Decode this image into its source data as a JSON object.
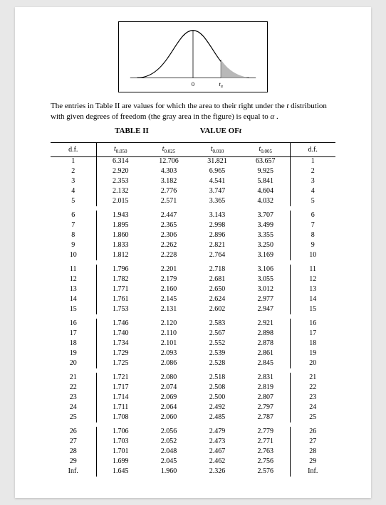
{
  "caption_pre": "The entries in Table II are values for which the area to their right under the ",
  "caption_ital": "t",
  "caption_post": " distribution with given degrees of freedom (the gray area in the figure) is equal to ",
  "caption_alpha": "α",
  "caption_end": " .",
  "title_table": "TABLE II",
  "title_value_pre": "VALUE OF",
  "title_value_ital": "t",
  "headers": {
    "df": "d.f.",
    "c1_pre": "t",
    "c1_sub": "0.050",
    "c2_pre": "t",
    "c2_sub": "0.025",
    "c3_pre": "t",
    "c3_sub": "0.010",
    "c4_pre": "t",
    "c4_sub": "0.005",
    "df2": "d.f."
  },
  "groups": [
    [
      {
        "df": "1",
        "v": [
          "6.314",
          "12.706",
          "31.821",
          "63.657"
        ]
      },
      {
        "df": "2",
        "v": [
          "2.920",
          "4.303",
          "6.965",
          "9.925"
        ]
      },
      {
        "df": "3",
        "v": [
          "2.353",
          "3.182",
          "4.541",
          "5.841"
        ]
      },
      {
        "df": "4",
        "v": [
          "2.132",
          "2.776",
          "3.747",
          "4.604"
        ]
      },
      {
        "df": "5",
        "v": [
          "2.015",
          "2.571",
          "3.365",
          "4.032"
        ]
      }
    ],
    [
      {
        "df": "6",
        "v": [
          "1.943",
          "2.447",
          "3.143",
          "3.707"
        ]
      },
      {
        "df": "7",
        "v": [
          "1.895",
          "2.365",
          "2.998",
          "3.499"
        ]
      },
      {
        "df": "8",
        "v": [
          "1.860",
          "2.306",
          "2.896",
          "3.355"
        ]
      },
      {
        "df": "9",
        "v": [
          "1.833",
          "2.262",
          "2.821",
          "3.250"
        ]
      },
      {
        "df": "10",
        "v": [
          "1.812",
          "2.228",
          "2.764",
          "3.169"
        ]
      }
    ],
    [
      {
        "df": "11",
        "v": [
          "1.796",
          "2.201",
          "2.718",
          "3.106"
        ]
      },
      {
        "df": "12",
        "v": [
          "1.782",
          "2.179",
          "2.681",
          "3.055"
        ]
      },
      {
        "df": "13",
        "v": [
          "1.771",
          "2.160",
          "2.650",
          "3.012"
        ]
      },
      {
        "df": "14",
        "v": [
          "1.761",
          "2.145",
          "2.624",
          "2.977"
        ]
      },
      {
        "df": "15",
        "v": [
          "1.753",
          "2.131",
          "2.602",
          "2.947"
        ]
      }
    ],
    [
      {
        "df": "16",
        "v": [
          "1.746",
          "2.120",
          "2.583",
          "2.921"
        ]
      },
      {
        "df": "17",
        "v": [
          "1.740",
          "2.110",
          "2.567",
          "2.898"
        ]
      },
      {
        "df": "18",
        "v": [
          "1.734",
          "2.101",
          "2.552",
          "2.878"
        ]
      },
      {
        "df": "19",
        "v": [
          "1.729",
          "2.093",
          "2.539",
          "2.861"
        ]
      },
      {
        "df": "20",
        "v": [
          "1.725",
          "2.086",
          "2.528",
          "2.845"
        ]
      }
    ],
    [
      {
        "df": "21",
        "v": [
          "1.721",
          "2.080",
          "2.518",
          "2.831"
        ]
      },
      {
        "df": "22",
        "v": [
          "1.717",
          "2.074",
          "2.508",
          "2.819"
        ]
      },
      {
        "df": "23",
        "v": [
          "1.714",
          "2.069",
          "2.500",
          "2.807"
        ]
      },
      {
        "df": "24",
        "v": [
          "1.711",
          "2.064",
          "2.492",
          "2.797"
        ]
      },
      {
        "df": "25",
        "v": [
          "1.708",
          "2.060",
          "2.485",
          "2.787"
        ]
      }
    ],
    [
      {
        "df": "26",
        "v": [
          "1.706",
          "2.056",
          "2.479",
          "2.779"
        ]
      },
      {
        "df": "27",
        "v": [
          "1.703",
          "2.052",
          "2.473",
          "2.771"
        ]
      },
      {
        "df": "28",
        "v": [
          "1.701",
          "2.048",
          "2.467",
          "2.763"
        ]
      },
      {
        "df": "29",
        "v": [
          "1.699",
          "2.045",
          "2.462",
          "2.756"
        ]
      },
      {
        "df": "Inf.",
        "v": [
          "1.645",
          "1.960",
          "2.326",
          "2.576"
        ]
      }
    ]
  ],
  "figure": {
    "axis_label_0": "0",
    "axis_label_t": "t",
    "axis_label_alpha": "α"
  }
}
